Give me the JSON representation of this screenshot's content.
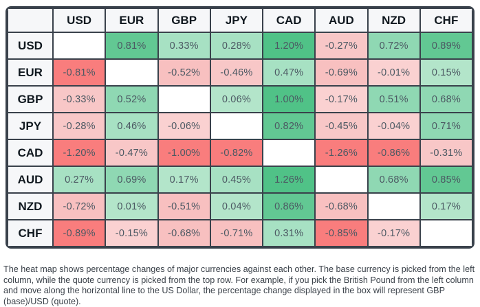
{
  "chart_data": {
    "type": "heatmap",
    "title": "",
    "unit": "%",
    "columns": [
      "USD",
      "EUR",
      "GBP",
      "JPY",
      "CAD",
      "AUD",
      "NZD",
      "CHF"
    ],
    "rows": [
      "USD",
      "EUR",
      "GBP",
      "JPY",
      "CAD",
      "AUD",
      "NZD",
      "CHF"
    ],
    "matrix": [
      [
        null,
        0.81,
        0.33,
        0.28,
        1.2,
        -0.27,
        0.72,
        0.89
      ],
      [
        -0.81,
        null,
        -0.52,
        -0.46,
        0.47,
        -0.69,
        -0.01,
        0.15
      ],
      [
        -0.33,
        0.52,
        null,
        0.06,
        1.0,
        -0.17,
        0.51,
        0.68
      ],
      [
        -0.28,
        0.46,
        -0.06,
        null,
        0.82,
        -0.45,
        -0.04,
        0.71
      ],
      [
        -1.2,
        -0.47,
        -1.0,
        -0.82,
        null,
        -1.26,
        -0.86,
        -0.31
      ],
      [
        0.27,
        0.69,
        0.17,
        0.45,
        1.26,
        null,
        0.68,
        0.85
      ],
      [
        -0.72,
        0.01,
        -0.51,
        0.04,
        0.86,
        -0.68,
        null,
        0.17
      ],
      [
        -0.89,
        -0.15,
        -0.68,
        -0.71,
        0.31,
        -0.85,
        -0.17,
        null
      ]
    ],
    "legend_position": "none",
    "grid": true
  },
  "caption": "The heat map shows percentage changes of major currencies against each other. The base currency is picked from the left column, while the quote currency is picked from the top row. For example, if you pick the British Pound from the left column and move along the horizontal line to the US Dollar, the percentage change displayed in the box will represent GBP (base)/USD (quote).",
  "colors": {
    "border": "#39414B",
    "header_bg": "#F6F7F9",
    "header_text": "#10181F",
    "cell_text": "#4C5963",
    "caption_text": "#3A4149",
    "diagonal_bg": "#FFFFFF",
    "positive_levels": [
      {
        "min": 1.0,
        "color": "#50C287"
      },
      {
        "min": 0.75,
        "color": "#62C893"
      },
      {
        "min": 0.5,
        "color": "#8FD8B3"
      },
      {
        "min": 0.25,
        "color": "#A7E1C3"
      },
      {
        "min": 0.0,
        "color": "#B3E5CA"
      }
    ],
    "negative_levels": [
      {
        "min": 0.75,
        "color": "#F97D7D"
      },
      {
        "min": 0.5,
        "color": "#F8C0C0"
      },
      {
        "min": 0.25,
        "color": "#F8C7C7"
      },
      {
        "min": 0.0,
        "color": "#FAD1D1"
      }
    ]
  }
}
